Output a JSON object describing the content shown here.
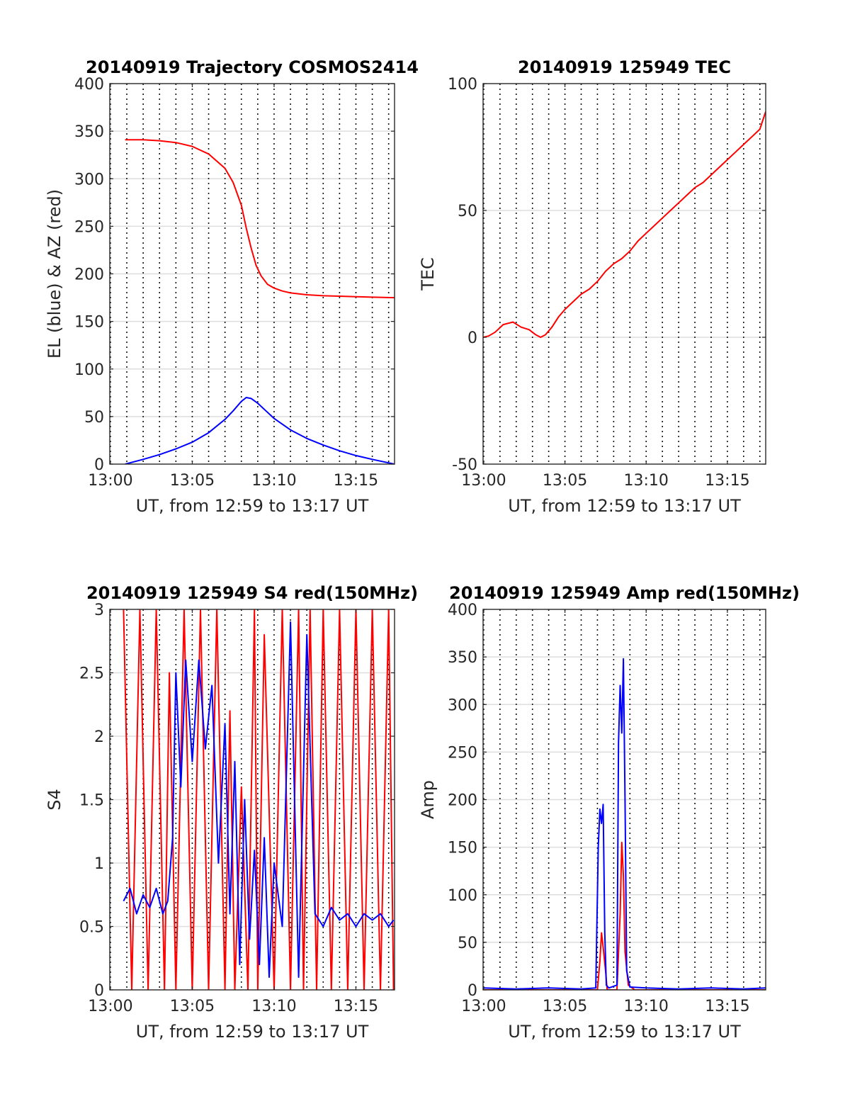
{
  "chart_data": [
    {
      "type": "line",
      "title": "20140919 Trajectory COSMOS2414",
      "xlabel": "UT, from 12:59 to 13:17 UT",
      "ylabel": "EL (blue) & AZ (red)",
      "xlim": [
        12.96,
        30.36
      ],
      "ylim": [
        0,
        400
      ],
      "xticks": [
        {
          "v": 13,
          "label": "13:00"
        },
        {
          "v": 18,
          "label": "13:05"
        },
        {
          "v": 23,
          "label": "13:10"
        },
        {
          "v": 28,
          "label": "13:15"
        }
      ],
      "yticks": [
        0,
        50,
        100,
        150,
        200,
        250,
        300,
        350,
        400
      ],
      "grid": "on",
      "series": [
        {
          "color": "#ff0000",
          "x": [
            13.9,
            15,
            16,
            17,
            18,
            19,
            20,
            20.5,
            21,
            21.3,
            21.6,
            21.9,
            22.2,
            22.6,
            23,
            23.5,
            24,
            25,
            26,
            27,
            28,
            29,
            30.36
          ],
          "y": [
            341,
            341,
            340,
            338,
            334,
            326,
            311,
            296,
            272,
            248,
            227,
            209,
            198,
            189,
            185,
            182,
            180,
            178,
            177,
            176.5,
            176,
            175.5,
            175
          ]
        },
        {
          "color": "#0000ff",
          "x": [
            13.9,
            15,
            16,
            17,
            18,
            19,
            20,
            20.5,
            21,
            21.3,
            21.6,
            22,
            22.5,
            23,
            24,
            25,
            26,
            27,
            28,
            29,
            30.36
          ],
          "y": [
            0,
            5,
            10,
            16,
            23,
            33,
            47,
            56,
            66,
            70,
            69,
            64,
            56,
            48,
            36,
            27,
            20,
            14,
            9,
            5,
            0
          ]
        }
      ]
    },
    {
      "type": "line",
      "title": "20140919 125949 TEC",
      "xlabel": "UT, from 12:59 to 13:17 UT",
      "ylabel": "TEC",
      "xlim": [
        12.96,
        30.36
      ],
      "ylim": [
        -50,
        100
      ],
      "xticks": [
        {
          "v": 13,
          "label": "13:00"
        },
        {
          "v": 18,
          "label": "13:05"
        },
        {
          "v": 23,
          "label": "13:10"
        },
        {
          "v": 28,
          "label": "13:15"
        }
      ],
      "yticks": [
        -50,
        0,
        50,
        100
      ],
      "grid": "on",
      "series": [
        {
          "color": "#ff0000",
          "x": [
            12.96,
            13.3,
            13.7,
            14.2,
            14.8,
            15.3,
            15.8,
            16.2,
            16.5,
            16.8,
            17.2,
            17.6,
            18,
            18.5,
            19,
            19.5,
            20,
            20.5,
            21,
            21.5,
            22,
            22.5,
            23,
            23.5,
            24,
            24.5,
            25,
            25.5,
            26,
            26.5,
            27,
            27.5,
            28,
            28.5,
            29,
            29.5,
            30,
            30.36
          ],
          "y": [
            0,
            0.5,
            2,
            5,
            6,
            4,
            3,
            1,
            0,
            1,
            4,
            8,
            11,
            14,
            17,
            19,
            22,
            26,
            29,
            31,
            34,
            38,
            41,
            44,
            47,
            50,
            53,
            56,
            59,
            61,
            64,
            67,
            70,
            73,
            76,
            79,
            82,
            89
          ]
        }
      ]
    },
    {
      "type": "line",
      "title": "20140919 125949 S4 red(150MHz)",
      "xlabel": "UT, from 12:59 to 13:17 UT",
      "ylabel": "S4",
      "xlim": [
        12.96,
        30.36
      ],
      "ylim": [
        0,
        3
      ],
      "xticks": [
        {
          "v": 13,
          "label": "13:00"
        },
        {
          "v": 18,
          "label": "13:05"
        },
        {
          "v": 23,
          "label": "13:10"
        },
        {
          "v": 28,
          "label": "13:15"
        }
      ],
      "yticks": [
        0,
        0.5,
        1,
        1.5,
        2,
        2.5,
        3
      ],
      "grid": "on",
      "series": [
        {
          "color": "#ff0000",
          "x": [
            13.8,
            14.3,
            14.8,
            15.3,
            15.8,
            16.3,
            16.6,
            17.0,
            17.5,
            18.0,
            18.5,
            19.0,
            19.5,
            20.0,
            20.3,
            20.6,
            21.0,
            21.4,
            21.8,
            22.0,
            22.4,
            23.0,
            23.5,
            24.0,
            24.5,
            24.8,
            25.2,
            25.6,
            26.0,
            26.5,
            27.0,
            27.5,
            28.0,
            28.5,
            29.0,
            29.5,
            30.0,
            30.3
          ],
          "y": [
            3,
            0,
            3,
            0,
            3,
            0,
            2.5,
            0,
            3,
            0,
            3,
            0,
            3,
            0,
            2.2,
            0,
            1.6,
            0,
            3,
            0,
            2.8,
            0,
            3,
            0,
            3,
            0,
            3,
            0,
            3,
            0,
            3,
            0,
            3,
            0,
            3,
            0,
            3,
            0
          ]
        },
        {
          "color": "#0000ff",
          "x": [
            13.8,
            14.2,
            14.6,
            15.0,
            15.4,
            15.8,
            16.2,
            16.5,
            16.8,
            17.0,
            17.3,
            17.6,
            18.0,
            18.4,
            18.8,
            19.2,
            19.6,
            20.0,
            20.3,
            20.6,
            20.9,
            21.2,
            21.5,
            21.8,
            22.1,
            22.4,
            22.7,
            23.0,
            23.5,
            24.0,
            24.5,
            25.0,
            25.5,
            26.0,
            26.5,
            27.0,
            27.5,
            28.0,
            28.5,
            29.0,
            29.5,
            30.0,
            30.3
          ],
          "y": [
            0.7,
            0.8,
            0.6,
            0.75,
            0.65,
            0.8,
            0.6,
            0.7,
            1.2,
            2.5,
            1.6,
            2.6,
            1.8,
            2.6,
            1.9,
            2.4,
            1.0,
            2.1,
            0.6,
            1.8,
            0.2,
            1.5,
            0.4,
            1.1,
            0.2,
            1.2,
            0.1,
            1.0,
            0.5,
            2.9,
            0.1,
            2.8,
            0.6,
            0.5,
            0.65,
            0.55,
            0.6,
            0.5,
            0.6,
            0.55,
            0.6,
            0.5,
            0.55
          ]
        }
      ]
    },
    {
      "type": "line",
      "title": "20140919 125949 Amp red(150MHz)",
      "xlabel": "UT, from 12:59 to 13:17 UT",
      "ylabel": "Amp",
      "xlim": [
        12.96,
        30.36
      ],
      "ylim": [
        0,
        400
      ],
      "xticks": [
        {
          "v": 13,
          "label": "13:00"
        },
        {
          "v": 18,
          "label": "13:05"
        },
        {
          "v": 23,
          "label": "13:10"
        },
        {
          "v": 28,
          "label": "13:15"
        }
      ],
      "yticks": [
        0,
        50,
        100,
        150,
        200,
        250,
        300,
        350,
        400
      ],
      "grid": "on",
      "series": [
        {
          "color": "#ff0000",
          "x": [
            12.96,
            20.0,
            20.15,
            20.25,
            20.35,
            20.5,
            20.6,
            21.2,
            21.4,
            21.5,
            21.6,
            21.7,
            21.9,
            22.3,
            30.36
          ],
          "y": [
            0,
            0,
            30,
            60,
            45,
            20,
            0,
            0,
            80,
            155,
            120,
            40,
            5,
            0,
            0
          ]
        },
        {
          "color": "#0000ff",
          "x": [
            12.96,
            15,
            17,
            19,
            19.9,
            20.05,
            20.15,
            20.25,
            20.35,
            20.45,
            20.55,
            20.7,
            21.2,
            21.3,
            21.4,
            21.5,
            21.6,
            21.7,
            21.8,
            22.0,
            23,
            25,
            27,
            29,
            30.36
          ],
          "y": [
            2,
            1,
            2,
            1,
            2,
            150,
            190,
            175,
            195,
            60,
            5,
            2,
            5,
            260,
            320,
            270,
            348,
            200,
            20,
            3,
            2,
            1,
            2,
            1,
            2
          ]
        }
      ]
    }
  ]
}
